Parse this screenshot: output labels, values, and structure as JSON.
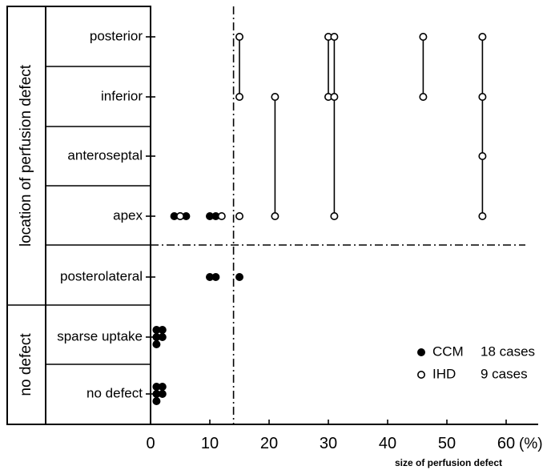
{
  "chart_data": {
    "type": "scatter",
    "title": "",
    "xlabel": "size of perfusion defect",
    "x_unit": "(%)",
    "xlim": [
      0,
      65
    ],
    "x_ticks": [
      0,
      10,
      20,
      30,
      40,
      50,
      60
    ],
    "x_tick_labels": [
      "0",
      "10",
      "20",
      "30",
      "40",
      "50",
      "60"
    ],
    "group_labels": [
      {
        "text": "location of perfusion defect",
        "rows": [
          "posterior",
          "inferior",
          "anteroseptal",
          "apex",
          "posterolateral"
        ]
      },
      {
        "text": "no defect",
        "rows": [
          "sparse uptake",
          "no defect"
        ]
      }
    ],
    "categories": [
      "posterior",
      "inferior",
      "anteroseptal",
      "apex",
      "posterolateral",
      "sparse uptake",
      "no defect"
    ],
    "category_labels": [
      "posterior",
      "inferior",
      "anteroseptal",
      "apex",
      "posterolateral",
      "sparse uptake",
      "no defect"
    ],
    "threshold_x": 14,
    "legend_position": "bottom-right",
    "series": [
      {
        "name": "CCM",
        "legend_label": "CCM",
        "legend_count": "18 cases",
        "marker": "filled",
        "points": [
          {
            "x": 4,
            "y": "apex"
          },
          {
            "x": 5,
            "y": "apex"
          },
          {
            "x": 6,
            "y": "apex"
          },
          {
            "x": 10,
            "y": "apex"
          },
          {
            "x": 11,
            "y": "apex"
          },
          {
            "x": 10,
            "y": "posterolateral"
          },
          {
            "x": 11,
            "y": "posterolateral"
          },
          {
            "x": 15,
            "y": "posterolateral"
          },
          {
            "x": 1,
            "y": "sparse uptake"
          },
          {
            "x": 2,
            "y": "sparse uptake"
          },
          {
            "x": 1,
            "y": "sparse uptake"
          },
          {
            "x": 2,
            "y": "sparse uptake"
          },
          {
            "x": 1,
            "y": "sparse uptake"
          },
          {
            "x": 1,
            "y": "no defect"
          },
          {
            "x": 2,
            "y": "no defect"
          },
          {
            "x": 1,
            "y": "no defect"
          },
          {
            "x": 2,
            "y": "no defect"
          },
          {
            "x": 1,
            "y": "no defect"
          }
        ]
      },
      {
        "name": "IHD",
        "legend_label": "IHD",
        "legend_count": "9 cases",
        "marker": "open",
        "points": [
          {
            "x": 5,
            "y": "apex"
          },
          {
            "x": 12,
            "y": "apex"
          },
          {
            "x": 15,
            "y": "apex"
          },
          {
            "x": 15,
            "y": "posterior"
          },
          {
            "x": 15,
            "y": "inferior"
          },
          {
            "x": 30,
            "y": "posterior"
          },
          {
            "x": 30,
            "y": "inferior"
          },
          {
            "x": 21,
            "y": "inferior"
          },
          {
            "x": 21,
            "y": "apex"
          },
          {
            "x": 31,
            "y": "posterior"
          },
          {
            "x": 31,
            "y": "inferior"
          },
          {
            "x": 31,
            "y": "apex"
          },
          {
            "x": 46,
            "y": "posterior"
          },
          {
            "x": 46,
            "y": "inferior"
          },
          {
            "x": 56,
            "y": "posterior"
          },
          {
            "x": 56,
            "y": "inferior"
          },
          {
            "x": 56,
            "y": "anteroseptal"
          },
          {
            "x": 56,
            "y": "apex"
          }
        ],
        "connections": [
          {
            "x": 15,
            "from": "posterior",
            "to": "inferior"
          },
          {
            "x": 30,
            "from": "posterior",
            "to": "inferior"
          },
          {
            "x": 21,
            "from": "inferior",
            "to": "apex"
          },
          {
            "x": 31,
            "from": "posterior",
            "to": "apex"
          },
          {
            "x": 46,
            "from": "posterior",
            "to": "inferior"
          },
          {
            "x": 56,
            "from": "posterior",
            "to": "apex"
          }
        ]
      }
    ]
  }
}
